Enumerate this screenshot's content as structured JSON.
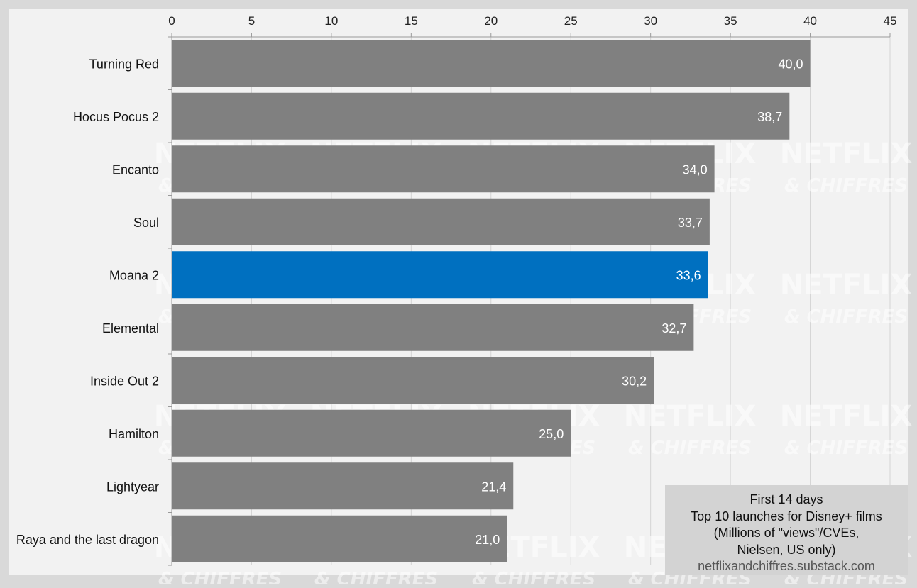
{
  "chart_data": {
    "type": "bar",
    "orientation": "horizontal",
    "categories": [
      "Turning Red",
      "Hocus Pocus 2",
      "Encanto",
      "Soul",
      "Moana 2",
      "Elemental",
      "Inside Out 2",
      "Hamilton",
      "Lightyear",
      "Raya and the last dragon"
    ],
    "values": [
      40.0,
      38.7,
      34.0,
      33.7,
      33.6,
      32.7,
      30.2,
      25.0,
      21.4,
      21.0
    ],
    "value_labels": [
      "40,0",
      "38,7",
      "34,0",
      "33,7",
      "33,6",
      "32,7",
      "30,2",
      "25,0",
      "21,4",
      "21,0"
    ],
    "highlight_index": 4,
    "xlim": [
      0,
      45
    ],
    "x_ticks": [
      0,
      5,
      10,
      15,
      20,
      25,
      30,
      35,
      40,
      45
    ],
    "x_axis_position": "top",
    "grid": "vertical",
    "colors": {
      "bar": "#808080",
      "highlight": "#0070c0",
      "plot_background": "#f2f2f2",
      "page_background": "#d9d9d9",
      "grid": "#d4d4d4"
    },
    "annotation": {
      "lines": [
        "First 14 days",
        "Top 10 launches for Disney+ films",
        "(Millions of \"views\"/CVEs,",
        "Nielsen, US only)"
      ],
      "source": "netflixandchiffres.substack.com",
      "placement": "bottom-right"
    },
    "watermark": [
      "NETFLIX",
      "& CHIFFRES"
    ]
  }
}
